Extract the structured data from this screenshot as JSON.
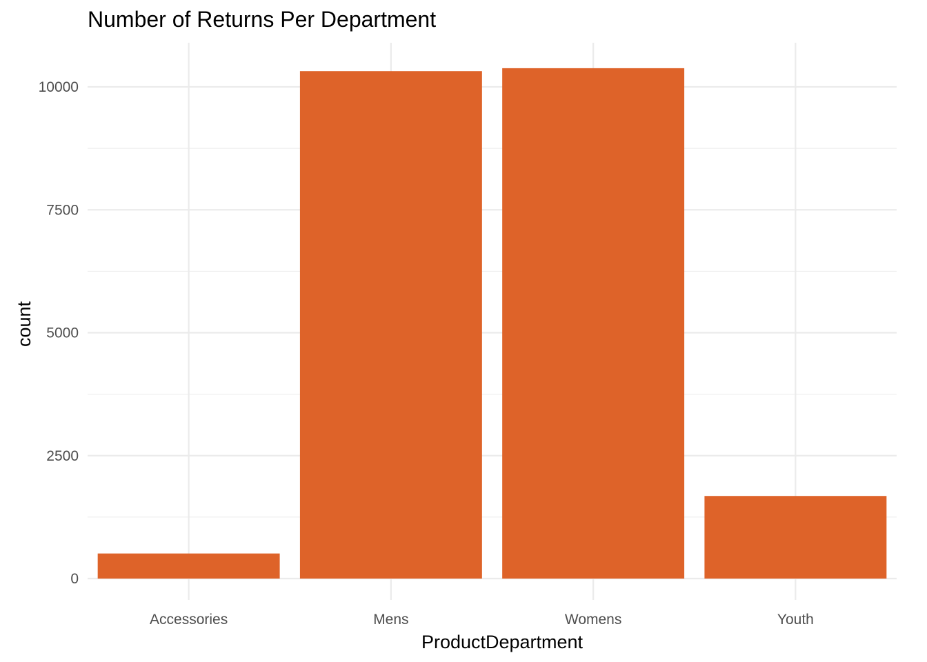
{
  "chart_data": {
    "type": "bar",
    "title": "Number of Returns Per Department",
    "xlabel": "ProductDepartment",
    "ylabel": "count",
    "categories": [
      "Accessories",
      "Mens",
      "Womens",
      "Youth"
    ],
    "values": [
      510,
      10320,
      10380,
      1680
    ],
    "ylim": [
      0,
      10900
    ],
    "yticks": [
      0,
      2500,
      5000,
      7500,
      10000
    ],
    "yticks_minor": [
      1250,
      3750,
      6250,
      8750
    ],
    "ytick_labels": [
      "0",
      "2500",
      "5000",
      "7500",
      "10000"
    ],
    "grid": true,
    "legend": "none",
    "bar_color": "#DE6329",
    "grid_color": "#EBEBEB",
    "background": "#FFFFFF"
  }
}
